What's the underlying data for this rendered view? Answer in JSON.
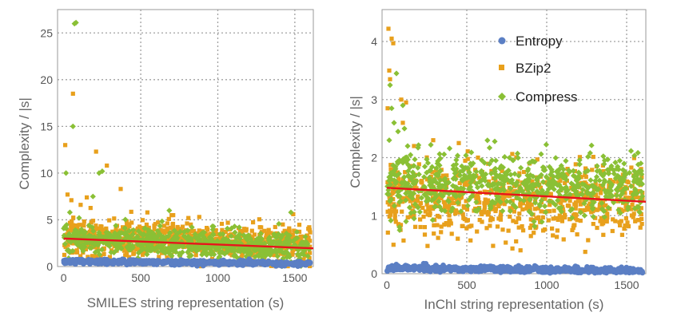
{
  "colors": {
    "entropy": "#5b7fc4",
    "bzip2": "#e8a01c",
    "compress": "#8ac035",
    "fit": "#e8141c"
  },
  "legend": [
    {
      "name": "Entropy",
      "color_key": "entropy",
      "marker": "circle"
    },
    {
      "name": "BZip2",
      "color_key": "bzip2",
      "marker": "square"
    },
    {
      "name": "Compress",
      "color_key": "compress",
      "marker": "diamond"
    }
  ],
  "chart_data": [
    {
      "type": "scatter",
      "title": "",
      "xlabel": "SMILES string representation (s)",
      "ylabel": "Complexity / |s|",
      "xlim": [
        -40,
        1620
      ],
      "ylim": [
        0,
        27.5
      ],
      "xticks": [
        0,
        500,
        1000,
        1500
      ],
      "yticks": [
        0,
        5,
        10,
        15,
        20,
        25
      ],
      "grid": true,
      "n_points": 700,
      "series": [
        {
          "name": "Entropy",
          "color_key": "entropy",
          "marker": "circle",
          "band": [
            [
              0,
              0.55
            ],
            [
              1600,
              0.3
            ]
          ],
          "spread": 0.15
        },
        {
          "name": "BZip2",
          "color_key": "bzip2",
          "marker": "square",
          "band": [
            [
              0,
              3.2
            ],
            [
              1600,
              2.4
            ]
          ],
          "spread": 1.2
        },
        {
          "name": "Compress",
          "color_key": "compress",
          "marker": "diamond",
          "band": [
            [
              0,
              3.0
            ],
            [
              1600,
              2.0
            ]
          ],
          "spread": 0.9
        }
      ],
      "outliers": {
        "BZip2": [
          [
            10,
            13.0
          ],
          [
            60,
            18.5
          ],
          [
            210,
            12.3
          ],
          [
            280,
            10.8
          ],
          [
            25,
            7.7
          ],
          [
            150,
            7.4
          ],
          [
            370,
            8.3
          ],
          [
            110,
            6.6
          ],
          [
            50,
            7.1
          ],
          [
            1490,
            5.6
          ],
          [
            700,
            5.5
          ],
          [
            880,
            5.3
          ]
        ],
        "Compress": [
          [
            70,
            26.0
          ],
          [
            80,
            26.1
          ],
          [
            60,
            15.0
          ],
          [
            15,
            10.0
          ],
          [
            230,
            10.0
          ],
          [
            250,
            10.2
          ],
          [
            40,
            5.8
          ],
          [
            190,
            7.5
          ],
          [
            1475,
            5.8
          ],
          [
            100,
            5.2
          ]
        ]
      },
      "fit_line": {
        "x": [
          0,
          1620
        ],
        "y": [
          3.0,
          1.95
        ]
      }
    },
    {
      "type": "scatter",
      "title": "",
      "xlabel": "InChI string representation (s)",
      "ylabel": "Complexity / |s|",
      "xlim": [
        -30,
        1620
      ],
      "ylim": [
        0,
        4.55
      ],
      "xticks": [
        0,
        500,
        1000,
        1500
      ],
      "yticks": [
        0,
        1,
        2,
        3,
        4
      ],
      "grid": true,
      "n_points": 700,
      "series": [
        {
          "name": "Entropy",
          "color_key": "entropy",
          "marker": "circle",
          "band": [
            [
              0,
              0.1
            ],
            [
              1600,
              0.05
            ]
          ],
          "spread": 0.03
        },
        {
          "name": "BZip2",
          "color_key": "bzip2",
          "marker": "square",
          "band": [
            [
              0,
              1.3
            ],
            [
              1600,
              1.25
            ]
          ],
          "spread": 0.38
        },
        {
          "name": "Compress",
          "color_key": "compress",
          "marker": "diamond",
          "band": [
            [
              0,
              1.55
            ],
            [
              1600,
              1.55
            ]
          ],
          "spread": 0.32
        }
      ],
      "outliers": {
        "BZip2": [
          [
            10,
            4.22
          ],
          [
            30,
            4.05
          ],
          [
            40,
            3.97
          ],
          [
            15,
            3.5
          ],
          [
            20,
            3.35
          ],
          [
            90,
            3.0
          ],
          [
            120,
            2.95
          ],
          [
            100,
            2.6
          ],
          [
            5,
            2.85
          ],
          [
            170,
            2.2
          ],
          [
            290,
            2.3
          ],
          [
            450,
            2.25
          ],
          [
            570,
            2.0
          ]
        ],
        "Compress": [
          [
            20,
            3.25
          ],
          [
            60,
            3.45
          ],
          [
            30,
            2.85
          ],
          [
            45,
            2.6
          ],
          [
            70,
            2.45
          ],
          [
            110,
            2.5
          ],
          [
            100,
            2.9
          ],
          [
            15,
            2.3
          ],
          [
            130,
            2.2
          ],
          [
            120,
            0.9
          ],
          [
            80,
            0.75
          ],
          [
            170,
            0.95
          ]
        ]
      },
      "fit_line": {
        "x": [
          0,
          1620
        ],
        "y": [
          1.48,
          1.24
        ]
      }
    }
  ]
}
